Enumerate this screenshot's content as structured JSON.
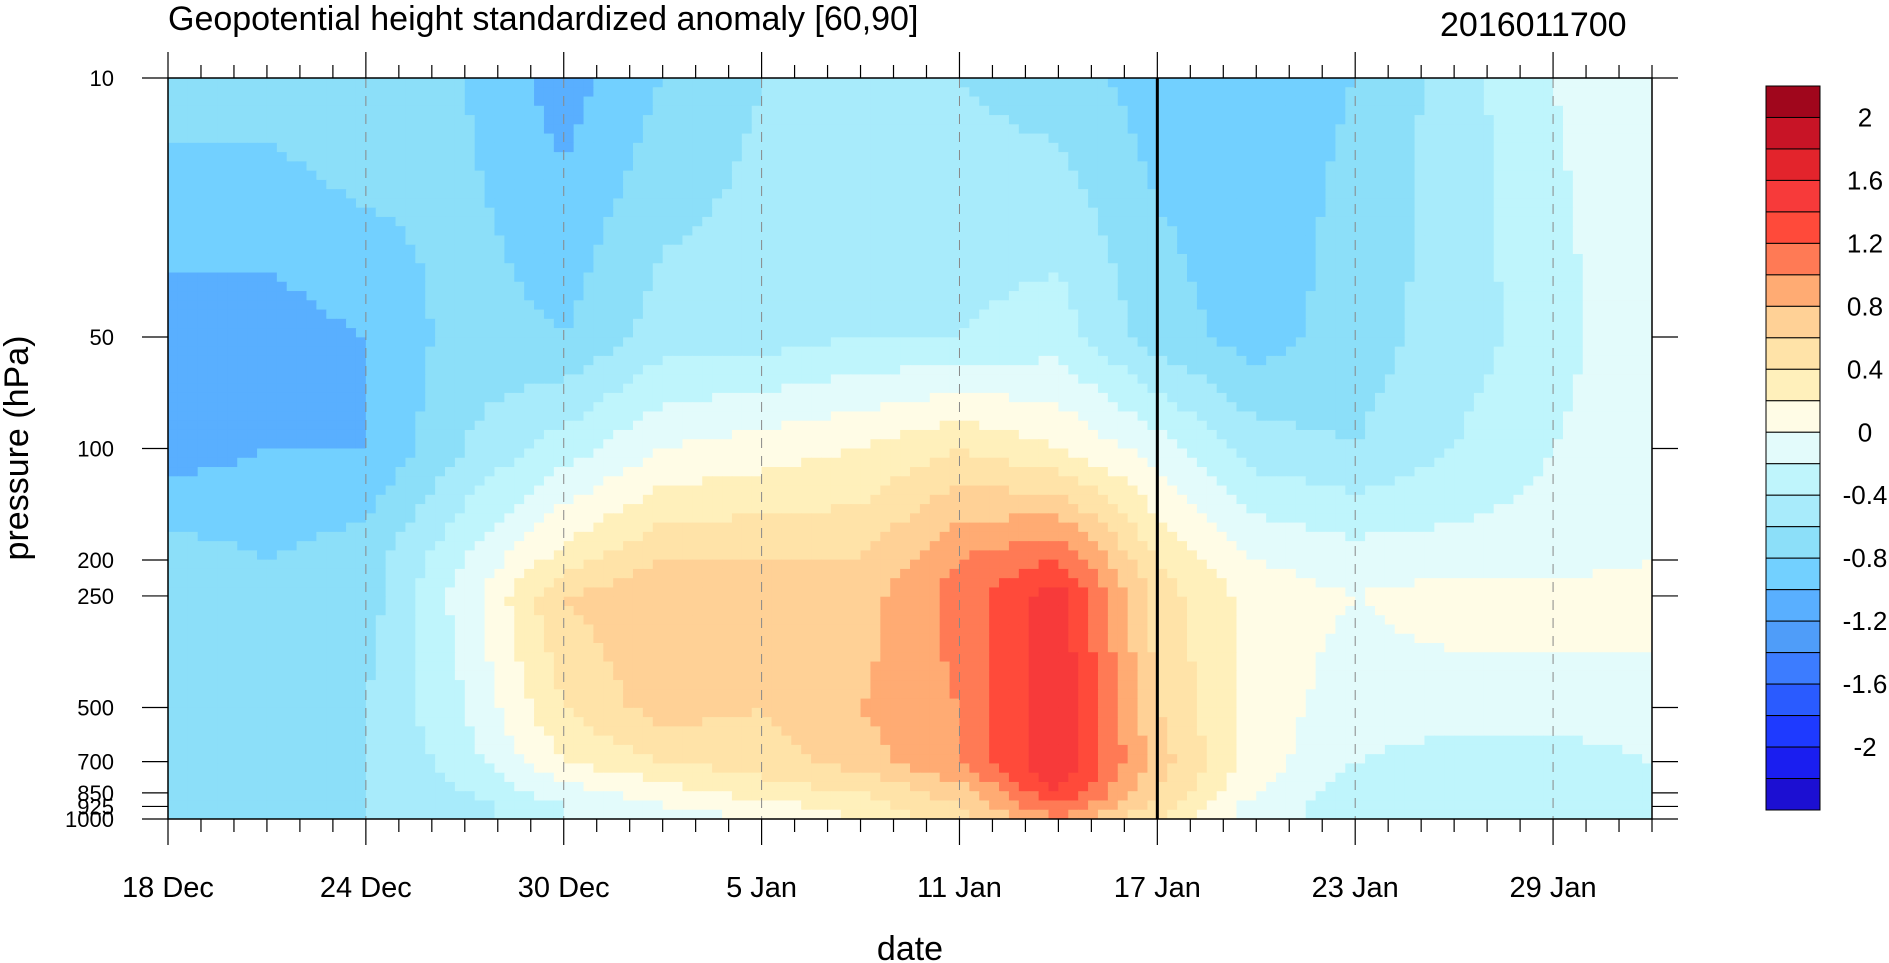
{
  "title_left": "Geopotential height standardized anomaly [60,90]",
  "title_right": "2016011700",
  "chart_data": {
    "type": "heatmap",
    "description_fields": [
      "pressure vs date filled contour"
    ],
    "xlabel": "date",
    "ylabel": "pressure (hPa)",
    "x_ticks": [
      "18 Dec",
      "24 Dec",
      "30 Dec",
      "5 Jan",
      "11 Jan",
      "17 Jan",
      "23 Jan",
      "29 Jan"
    ],
    "x_range_days": [
      0,
      45
    ],
    "y_ticks": [
      "10",
      "50",
      "100",
      "200",
      "250",
      "500",
      "700",
      "850",
      "925",
      "1000"
    ],
    "y_levels_hPa": [
      10,
      50,
      100,
      200,
      250,
      500,
      700,
      850,
      925,
      1000
    ],
    "current_time_marker": "17 Jan",
    "colorbar": {
      "levels": [
        -2.2,
        -2,
        -1.8,
        -1.6,
        -1.4,
        -1.2,
        -1,
        -0.8,
        -0.6,
        -0.4,
        -0.2,
        0,
        0.2,
        0.4,
        0.6,
        0.8,
        1,
        1.2,
        1.4,
        1.6,
        1.8,
        2,
        2.2
      ],
      "colors": [
        "#1c0fd2",
        "#1a1ef0",
        "#1e3aff",
        "#2a5bff",
        "#3c7cff",
        "#4f9df9",
        "#59afff",
        "#72d0ff",
        "#8cdff9",
        "#a8ebfb",
        "#bff5fc",
        "#e3fbfb",
        "#fffce6",
        "#fff0bb",
        "#ffe3a8",
        "#ffd196",
        "#ffab73",
        "#ff7a55",
        "#ff4a3a",
        "#f73a3a",
        "#e3242c",
        "#c81426",
        "#a0061c"
      ],
      "labels": [
        "2",
        "1.6",
        "1.2",
        "0.8",
        "0.4",
        "0",
        "-0.4",
        "-0.8",
        "-1.2",
        "-1.6",
        "-2"
      ]
    },
    "grid_values_note": "Standardized anomaly on day (0=18 Dec) x pressure grid",
    "x_days": [
      0,
      3,
      6,
      9,
      12,
      15,
      18,
      21,
      24,
      27,
      30,
      33,
      36,
      39,
      42,
      45
    ],
    "levels_for_grid_hPa": [
      10,
      50,
      100,
      200,
      250,
      500,
      700,
      850,
      925,
      1000
    ],
    "values": [
      [
        -0.5,
        -0.5,
        -0.4,
        -0.6,
        -0.9,
        -0.6,
        -0.4,
        -0.3,
        -0.4,
        -0.5,
        -0.7,
        -0.7,
        -0.6,
        -0.3,
        0.0,
        0.2
      ],
      [
        -0.9,
        -0.9,
        -0.8,
        -0.5,
        -0.6,
        -0.3,
        -0.3,
        -0.2,
        -0.2,
        -0.1,
        -0.5,
        -0.7,
        -0.5,
        -0.3,
        -0.1,
        0.2
      ],
      [
        -0.9,
        -0.8,
        -0.8,
        -0.4,
        -0.1,
        0.2,
        0.3,
        0.4,
        0.6,
        0.4,
        0.1,
        -0.3,
        -0.4,
        -0.2,
        0.0,
        0.2
      ],
      [
        -0.5,
        -0.6,
        -0.5,
        0.0,
        0.5,
        0.8,
        0.8,
        0.8,
        1.2,
        1.4,
        0.6,
        0.2,
        0.1,
        0.1,
        0.1,
        0.2
      ],
      [
        -0.5,
        -0.6,
        -0.5,
        0.1,
        0.8,
        1.0,
        0.8,
        0.9,
        1.3,
        1.7,
        0.7,
        0.3,
        0.2,
        0.3,
        0.3,
        0.3
      ],
      [
        -0.5,
        -0.6,
        -0.4,
        0.0,
        0.6,
        0.9,
        0.8,
        1.0,
        1.2,
        1.8,
        0.8,
        0.3,
        0.1,
        0.1,
        0.1,
        0.1
      ],
      [
        -0.6,
        -0.5,
        -0.4,
        -0.1,
        0.4,
        0.6,
        0.7,
        0.9,
        1.2,
        1.8,
        0.9,
        0.3,
        0.0,
        -0.1,
        -0.1,
        0.0
      ],
      [
        -0.5,
        -0.5,
        -0.4,
        -0.2,
        0.1,
        0.3,
        0.5,
        0.6,
        0.9,
        1.6,
        0.8,
        0.2,
        -0.1,
        -0.1,
        -0.1,
        0.0
      ],
      [
        -0.5,
        -0.5,
        -0.4,
        -0.3,
        0.0,
        0.2,
        0.3,
        0.5,
        0.8,
        1.4,
        0.7,
        0.1,
        -0.1,
        -0.2,
        -0.1,
        0.0
      ],
      [
        -0.5,
        -0.5,
        -0.4,
        -0.3,
        0.0,
        0.1,
        0.2,
        0.4,
        0.7,
        1.2,
        0.6,
        0.1,
        -0.1,
        -0.2,
        -0.1,
        0.0
      ]
    ]
  },
  "icons": {}
}
